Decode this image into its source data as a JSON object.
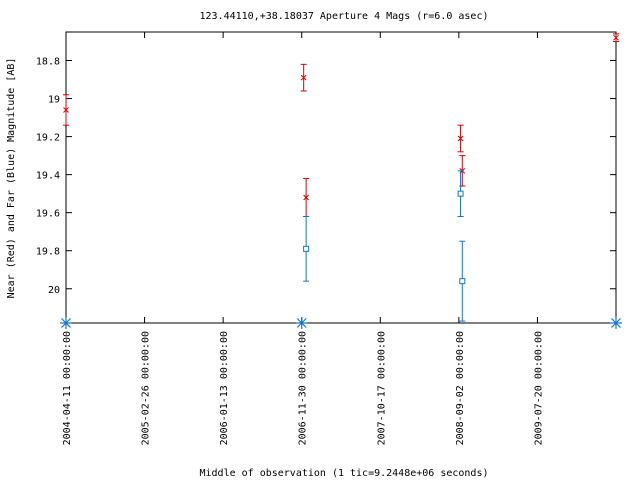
{
  "chart_data": {
    "type": "scatter",
    "title": "123.44110,+38.18037   Aperture 4 Mags (r=6.0 asec)",
    "xlabel": "Middle of observation (1 tic=9.2448e+06 seconds)",
    "ylabel": "Near (Red) and Far (Blue) Magnitude [AB]",
    "x_ticks": [
      "2004-04-11 00:00:00",
      "2005-02-26 00:00:00",
      "2006-01-13 00:00:00",
      "2006-11-30 00:00:00",
      "2007-10-17 00:00:00",
      "2008-09-02 00:00:00",
      "2009-07-20 00:00:00"
    ],
    "xlim": [
      "2004-04-11",
      "2010-06-06"
    ],
    "y_ticks": [
      "18.8",
      "19",
      "19.2",
      "19.4",
      "19.6",
      "19.8",
      "20"
    ],
    "ylim": [
      20.18,
      18.65
    ],
    "y_inverted": true,
    "grid": false,
    "series": [
      {
        "name": "Near",
        "color": "#dd0000",
        "marker": "x",
        "points": [
          {
            "x": "2004-04-11",
            "y": 19.06,
            "err": 0.08
          },
          {
            "x": "2006-12-08",
            "y": 18.89,
            "err": 0.07
          },
          {
            "x": "2006-12-18",
            "y": 19.52,
            "err": 0.1
          },
          {
            "x": "2008-09-09",
            "y": 19.21,
            "err": 0.07
          },
          {
            "x": "2008-09-16",
            "y": 19.38,
            "err": 0.08
          },
          {
            "x": "2010-06-06",
            "y": 18.68,
            "err": 0.02
          }
        ]
      },
      {
        "name": "Far",
        "color": "#1177cc",
        "marker": "square",
        "points": [
          {
            "x": "2006-12-18",
            "y": 19.79,
            "err": 0.17
          },
          {
            "x": "2008-09-09",
            "y": 19.5,
            "err": 0.12
          },
          {
            "x": "2008-09-16",
            "y": 19.96,
            "err": 0.21
          }
        ]
      },
      {
        "name": "",
        "color": "#1177cc",
        "marker": "star",
        "on_axis": true,
        "points": [
          {
            "x": "2004-04-11"
          },
          {
            "x": "2006-11-30"
          },
          {
            "x": "2010-06-06"
          }
        ]
      }
    ]
  }
}
